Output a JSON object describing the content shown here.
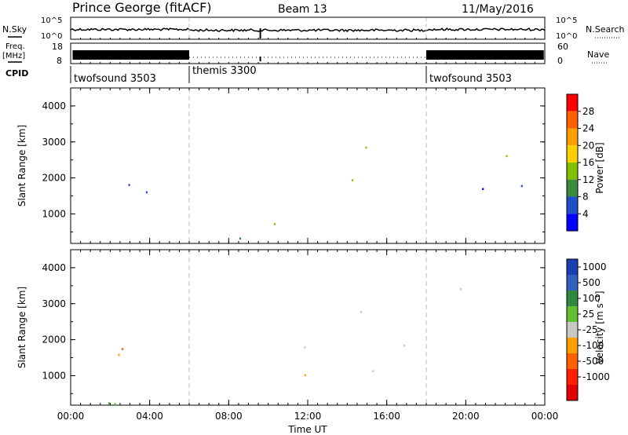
{
  "header": {
    "title": "Prince George (fitACF)",
    "beam": "Beam 13",
    "date": "11/May/2016"
  },
  "top_panels": {
    "nsky": {
      "label": "N.Sky",
      "left_ticks": [
        "10^5",
        "10^0"
      ],
      "right_ticks": [
        "10^5",
        "10^0"
      ],
      "right_label": "N.Search"
    },
    "freq": {
      "label_line1": "Freq.",
      "label_line2": "[MHz]",
      "left_ticks": [
        "18",
        "8"
      ],
      "right_ticks": [
        "60",
        "0"
      ],
      "right_label": "Nave"
    },
    "cpid": {
      "label": "CPID",
      "segments": [
        {
          "name": "twofsound 3503",
          "start": 0,
          "end": 6
        },
        {
          "name": "themis 3300",
          "start": 6,
          "end": 18
        },
        {
          "name": "twofsound 3503",
          "start": 18,
          "end": 24
        }
      ]
    }
  },
  "chart_data": [
    {
      "type": "heatmap",
      "name": "power",
      "ylabel": "Slant Range [km]",
      "ylim": [
        180,
        4500
      ],
      "yticks": [
        "4000",
        "3000",
        "2000",
        "1000"
      ],
      "colorbar_label": "Power [dB]",
      "colorbar_ticks": [
        "28",
        "24",
        "20",
        "16",
        "12",
        "8",
        "4"
      ],
      "colorbar_colors": [
        "#ff0000",
        "#ff6000",
        "#ffa000",
        "#ffd000",
        "#80c000",
        "#3a8a40",
        "#2050c8",
        "#0000ff"
      ]
    },
    {
      "type": "heatmap",
      "name": "velocity",
      "ylabel": "Slant Range [km]",
      "ylim": [
        180,
        4500
      ],
      "yticks": [
        "4000",
        "3000",
        "2000",
        "1000"
      ],
      "colorbar_label": "Velocity [m s⁻¹]",
      "colorbar_ticks": [
        "1000",
        "500",
        "100",
        "25",
        "-25",
        "-100",
        "-500",
        "-1000"
      ],
      "colorbar_colors": [
        "#1a3fb0",
        "#3060c0",
        "#2e8a40",
        "#60c030",
        "#c8c8c0",
        "#ffa000",
        "#ff6000",
        "#ff2000",
        "#e00000"
      ]
    }
  ],
  "xaxis": {
    "label": "Time UT",
    "ticks": [
      "00:00",
      "04:00",
      "08:00",
      "12:00",
      "16:00",
      "20:00",
      "00:00"
    ],
    "range": [
      0,
      24
    ]
  },
  "dividers": [
    6,
    18
  ]
}
